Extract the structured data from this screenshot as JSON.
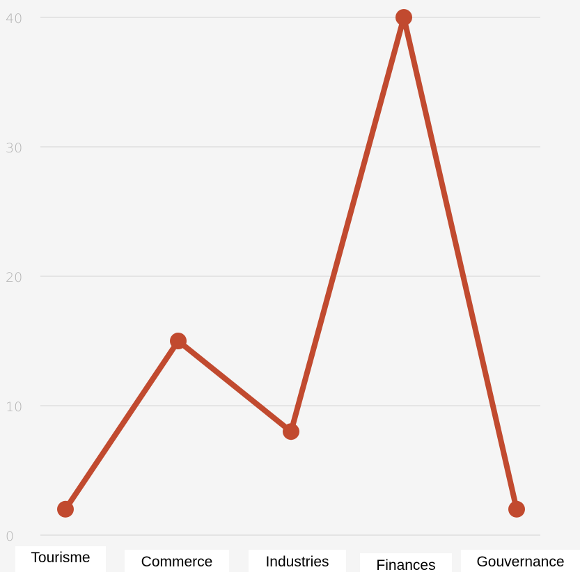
{
  "chart_data": {
    "type": "line",
    "categories": [
      "Tourisme",
      "Commerce",
      "Industries",
      "Finances",
      "Gouvernance"
    ],
    "series": [
      {
        "values": [
          2,
          15,
          8,
          40,
          2
        ]
      }
    ],
    "ylim": [
      0,
      40
    ],
    "yticks": [
      "0",
      "10",
      "20",
      "30",
      "40"
    ],
    "grid": true,
    "line_color": "#c14a2f",
    "grid_color": "#dedede",
    "background": "#f5f5f5"
  }
}
